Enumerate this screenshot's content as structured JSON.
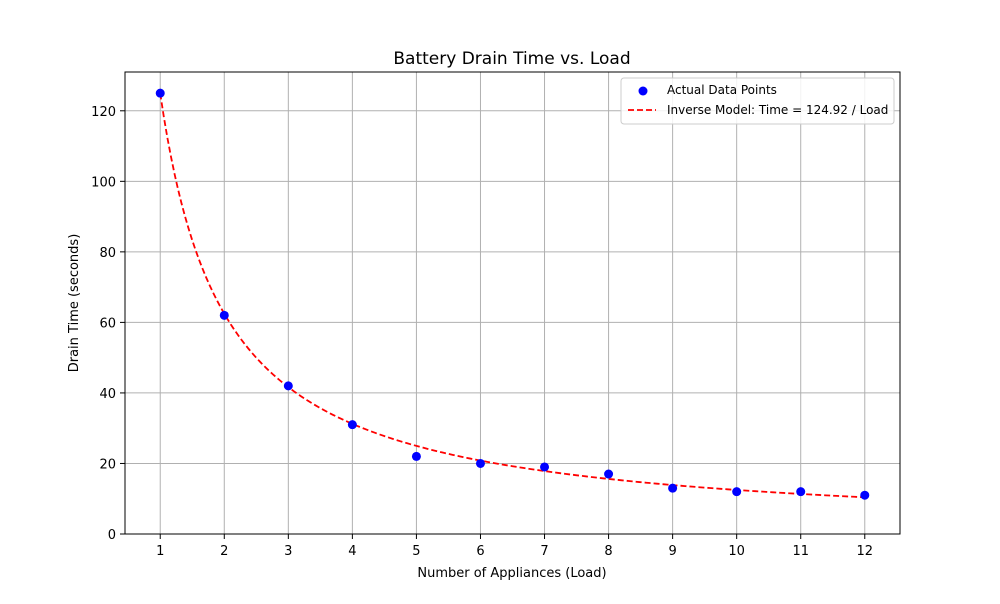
{
  "chart_data": {
    "type": "scatter",
    "title": "Battery Drain Time vs. Load",
    "xlabel": "Number of Appliances (Load)",
    "ylabel": "Drain Time (seconds)",
    "xlim": [
      0.45,
      12.55
    ],
    "ylim": [
      0,
      131
    ],
    "xticks": [
      1,
      2,
      3,
      4,
      5,
      6,
      7,
      8,
      9,
      10,
      11,
      12
    ],
    "yticks": [
      0,
      20,
      40,
      60,
      80,
      100,
      120
    ],
    "grid": true,
    "legend_position": "top-right",
    "series": [
      {
        "name": "Actual Data Points",
        "kind": "scatter",
        "color": "#0000ff",
        "x": [
          1,
          2,
          3,
          4,
          5,
          6,
          7,
          8,
          9,
          10,
          11,
          12
        ],
        "y": [
          125,
          62,
          42,
          31,
          22,
          20,
          19,
          17,
          13,
          12,
          12,
          11
        ]
      },
      {
        "name": "Inverse Model: Time = 124.92 / Load",
        "kind": "line",
        "style": "dashed",
        "color": "#ff0000",
        "function": "inverse",
        "coefficient": 124.92,
        "x_range": [
          1,
          12
        ]
      }
    ]
  }
}
